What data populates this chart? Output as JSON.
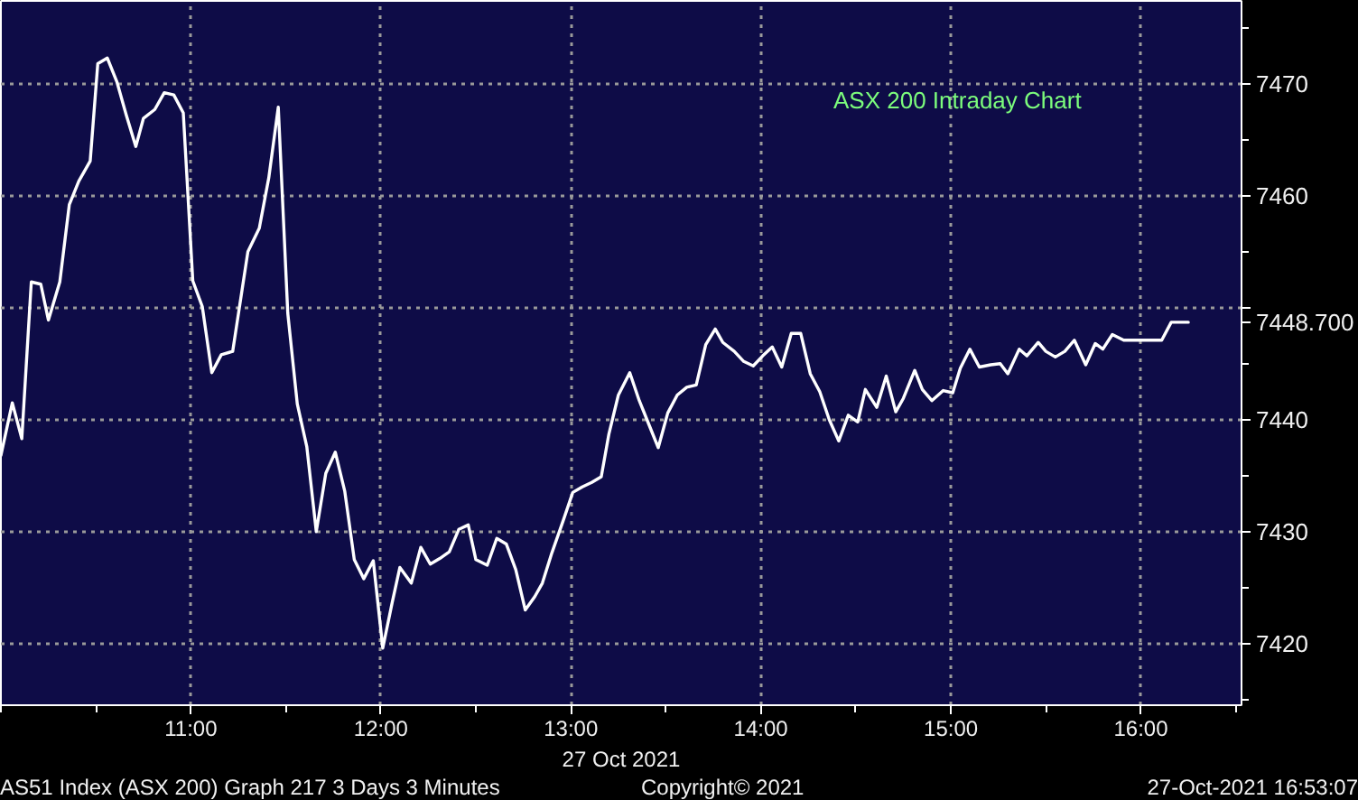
{
  "chart_data": {
    "type": "line",
    "title": "ASX 200 Intraday Chart",
    "xlabel": "27 Oct 2021",
    "xlim": [
      10.0,
      16.53
    ],
    "xticks": [
      {
        "value": 11,
        "label": "11:00"
      },
      {
        "value": 12,
        "label": "12:00"
      },
      {
        "value": 13,
        "label": "13:00"
      },
      {
        "value": 14,
        "label": "14:00"
      },
      {
        "value": 15,
        "label": "15:00"
      },
      {
        "value": 16,
        "label": "16:00"
      }
    ],
    "ylim": [
      7414.5,
      7477.4
    ],
    "yticks": [
      7420,
      7430,
      7440,
      {
        "value": 7448.7,
        "label": "7448.700"
      },
      {
        "value": 7450,
        "label": null
      },
      7460,
      7470
    ],
    "grid": true,
    "line_style": "solid",
    "x": [
      10.0,
      10.06,
      10.11,
      10.16,
      10.21,
      10.25,
      10.31,
      10.36,
      10.41,
      10.47,
      10.51,
      10.56,
      10.61,
      10.66,
      10.71,
      10.75,
      10.81,
      10.86,
      10.91,
      10.96,
      11.01,
      11.06,
      11.11,
      11.16,
      11.22,
      11.3,
      11.36,
      11.41,
      11.46,
      11.51,
      11.56,
      11.61,
      11.66,
      11.71,
      11.76,
      11.81,
      11.86,
      11.91,
      11.96,
      12.01,
      12.06,
      12.1,
      12.16,
      12.21,
      12.26,
      12.31,
      12.36,
      12.41,
      12.46,
      12.5,
      12.56,
      12.61,
      12.66,
      12.71,
      12.76,
      12.81,
      12.85,
      12.9,
      12.96,
      13.01,
      13.06,
      13.11,
      13.16,
      13.2,
      13.25,
      13.31,
      13.36,
      13.41,
      13.46,
      13.51,
      13.56,
      13.61,
      13.66,
      13.71,
      13.76,
      13.8,
      13.86,
      13.91,
      13.96,
      14.01,
      14.06,
      14.11,
      14.16,
      14.21,
      14.26,
      14.31,
      14.36,
      14.41,
      14.46,
      14.51,
      14.55,
      14.61,
      14.66,
      14.71,
      14.75,
      14.81,
      14.85,
      14.9,
      14.96,
      15.01,
      15.05,
      15.1,
      15.15,
      15.21,
      15.26,
      15.3,
      15.36,
      15.4,
      15.46,
      15.5,
      15.55,
      15.6,
      15.65,
      15.71,
      15.76,
      15.8,
      15.85,
      15.91,
      16.11,
      16.16,
      16.25
    ],
    "series": [
      {
        "color": "#ffffff",
        "values": [
          7436.8,
          7441.5,
          7438.3,
          7452.3,
          7452.1,
          7448.9,
          7452.3,
          7459.2,
          7461.3,
          7463.1,
          7471.8,
          7472.3,
          7470.2,
          7467.2,
          7464.4,
          7466.9,
          7467.7,
          7469.2,
          7469.0,
          7467.4,
          7452.4,
          7450.1,
          7444.2,
          7445.8,
          7446.1,
          7455.0,
          7457.1,
          7461.6,
          7467.9,
          7449.5,
          7441.4,
          7437.6,
          7430.0,
          7435.2,
          7437.1,
          7433.6,
          7427.5,
          7425.8,
          7427.4,
          7419.6,
          7423.7,
          7426.8,
          7425.4,
          7428.6,
          7427.1,
          7427.6,
          7428.2,
          7430.2,
          7430.6,
          7427.5,
          7427.0,
          7429.4,
          7428.9,
          7426.6,
          7423.0,
          7424.2,
          7425.4,
          7428.1,
          7431.0,
          7433.5,
          7434.0,
          7434.4,
          7434.9,
          7438.7,
          7442.2,
          7444.2,
          7441.7,
          7439.6,
          7437.5,
          7440.6,
          7442.2,
          7442.9,
          7443.1,
          7446.7,
          7448.1,
          7446.9,
          7446.1,
          7445.2,
          7444.8,
          7445.7,
          7446.5,
          7444.7,
          7447.7,
          7447.7,
          7444.1,
          7442.5,
          7440.0,
          7438.1,
          7440.4,
          7439.8,
          7442.7,
          7441.1,
          7443.9,
          7440.7,
          7441.9,
          7444.4,
          7442.7,
          7441.7,
          7442.6,
          7442.4,
          7444.6,
          7446.3,
          7444.7,
          7444.9,
          7445.0,
          7444.1,
          7446.3,
          7445.7,
          7446.9,
          7446.1,
          7445.6,
          7446.1,
          7447.1,
          7444.9,
          7446.8,
          7446.3,
          7447.6,
          7447.1,
          7447.1,
          7448.7,
          7448.7
        ]
      }
    ],
    "annotations": [
      "AS51 Index (ASX 200) Graph 217 3 Days 3 Minutes",
      "Copyright© 2021",
      "27-Oct-2021 16:53:07"
    ]
  }
}
